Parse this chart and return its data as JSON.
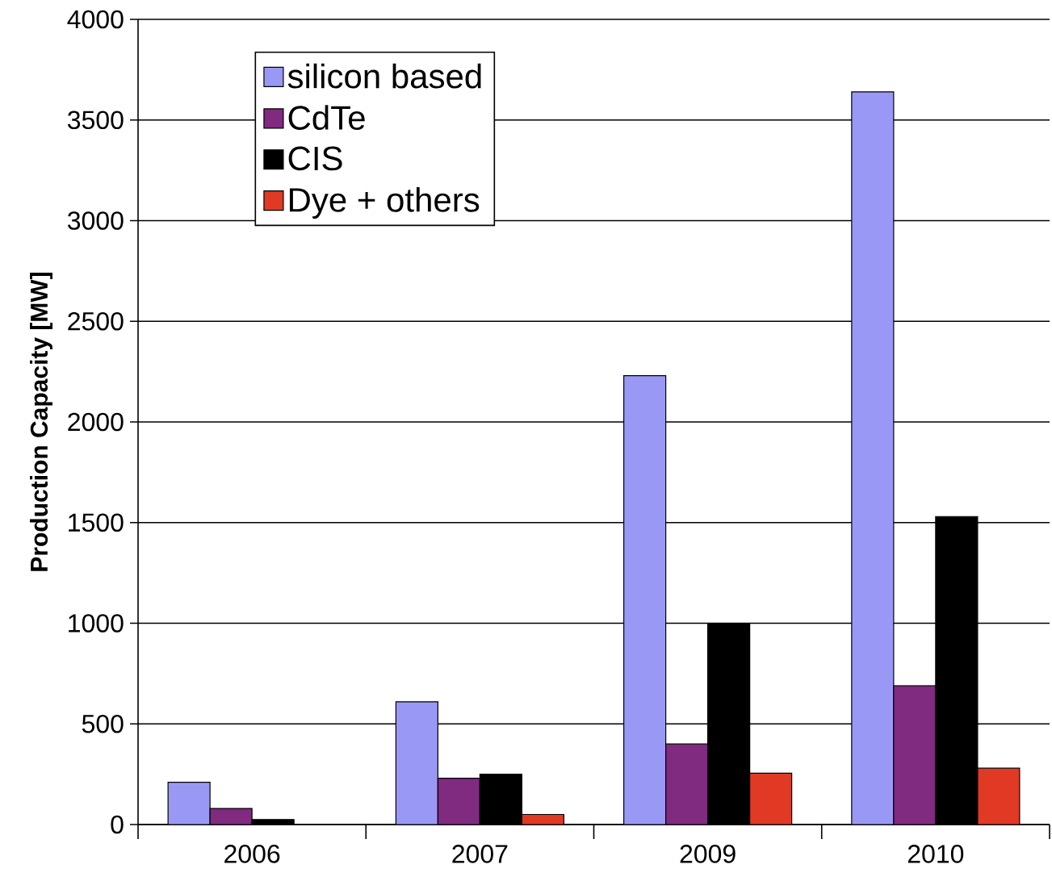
{
  "chart_data": {
    "type": "bar",
    "ylabel": "Production Capacity [MW]",
    "categories": [
      "2006",
      "2007",
      "2009",
      "2010"
    ],
    "series": [
      {
        "name": "silicon based",
        "color": "#9999f5",
        "values": [
          210,
          610,
          2230,
          3640
        ]
      },
      {
        "name": "CdTe",
        "color": "#802a80",
        "values": [
          80,
          230,
          400,
          690
        ]
      },
      {
        "name": "CIS",
        "color": "#000000",
        "values": [
          25,
          250,
          1000,
          1530
        ]
      },
      {
        "name": "Dye + others",
        "color": "#e03a24",
        "values": [
          null,
          50,
          255,
          280
        ]
      }
    ],
    "ylim": [
      0,
      4000
    ],
    "yticks": [
      0,
      500,
      1000,
      1500,
      2000,
      2500,
      3000,
      3500,
      4000
    ],
    "grid": "y",
    "legend": "top left"
  }
}
